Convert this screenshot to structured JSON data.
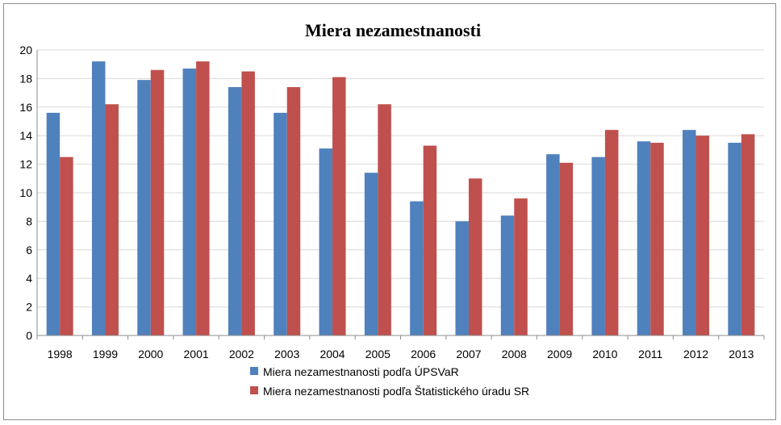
{
  "chart_data": {
    "type": "bar",
    "title": "Miera nezamestnanosti",
    "categories": [
      "1998",
      "1999",
      "2000",
      "2001",
      "2002",
      "2003",
      "2004",
      "2005",
      "2006",
      "2007",
      "2008",
      "2009",
      "2010",
      "2011",
      "2012",
      "2013"
    ],
    "series": [
      {
        "name": "Miera nezamestnanosti podľa ÚPSVaR",
        "color": "#4f81bd",
        "values": [
          15.6,
          19.2,
          17.9,
          18.7,
          17.4,
          15.6,
          13.1,
          11.4,
          9.4,
          8.0,
          8.4,
          12.7,
          12.5,
          13.6,
          14.4,
          13.5
        ]
      },
      {
        "name": "Miera nezamestnanosti podľa Štatistického úradu SR",
        "color": "#c0504d",
        "values": [
          12.5,
          16.2,
          18.6,
          19.2,
          18.5,
          17.4,
          18.1,
          16.2,
          13.3,
          11.0,
          9.6,
          12.1,
          14.4,
          13.5,
          14.0,
          14.1
        ]
      }
    ],
    "ylim": [
      0,
      20
    ],
    "yticks": [
      "0",
      "2",
      "4",
      "6",
      "8",
      "10",
      "12",
      "14",
      "16",
      "18",
      "20"
    ],
    "grid": true,
    "legend": "bottom"
  }
}
